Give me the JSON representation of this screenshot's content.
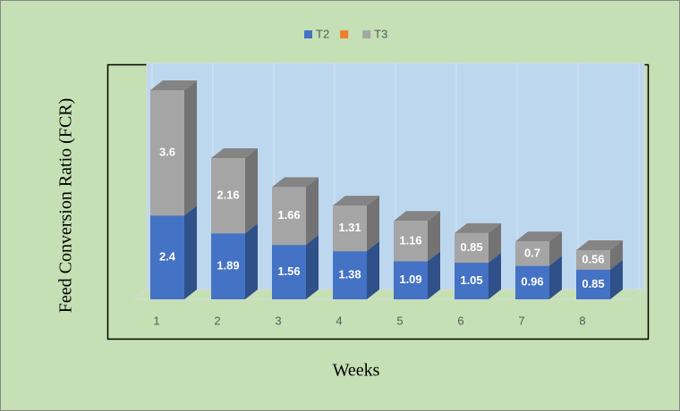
{
  "chart_data": {
    "type": "bar3d_stacked",
    "x_label": "Weeks",
    "y_label": "Feed Conversion Ratio (FCR)",
    "categories": [
      "1",
      "2",
      "3",
      "4",
      "5",
      "6",
      "7",
      "8"
    ],
    "series": [
      {
        "name": "T2",
        "color": "#4472c4",
        "values": [
          2.4,
          1.89,
          1.56,
          1.38,
          1.09,
          1.05,
          0.96,
          0.85
        ]
      },
      {
        "name": null,
        "color": "#ed7d31",
        "values": [
          null,
          null,
          null,
          null,
          null,
          null,
          null,
          null
        ]
      },
      {
        "name": "T3",
        "color": "#a5a5a5",
        "values": [
          3.6,
          2.16,
          1.66,
          1.31,
          1.16,
          0.85,
          0.7,
          0.56
        ]
      }
    ],
    "ylim": [
      0,
      6.5
    ],
    "legend": "top"
  }
}
